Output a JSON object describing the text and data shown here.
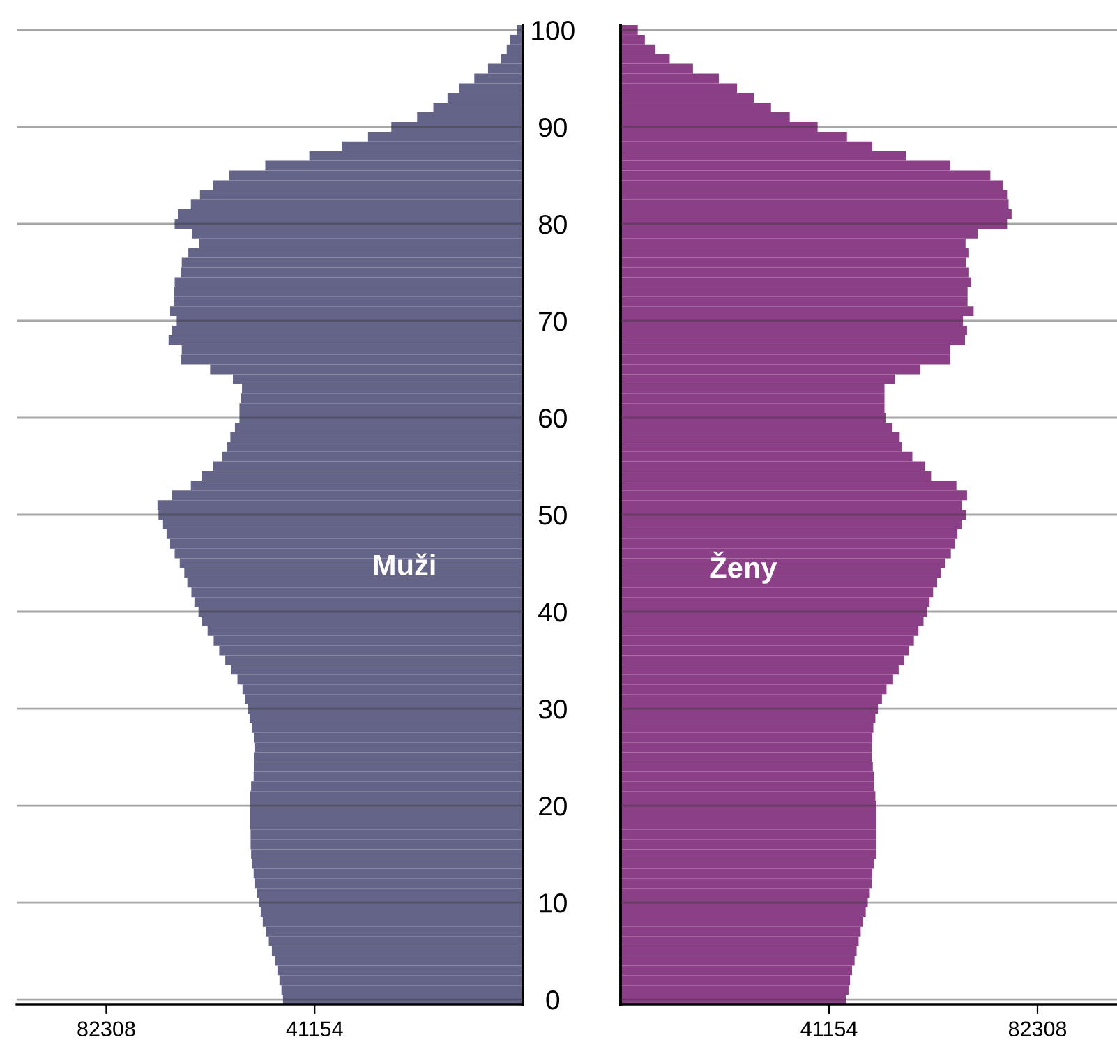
{
  "chart_data": [
    {
      "type": "bar",
      "orientation": "horizontal",
      "x": [
        0,
        1,
        2,
        3,
        4,
        5,
        6,
        7,
        8,
        9,
        10,
        11,
        12,
        13,
        14,
        15,
        16,
        17,
        18,
        19,
        20,
        21,
        22,
        23,
        24,
        25,
        26,
        27,
        28,
        29,
        30,
        31,
        32,
        33,
        34,
        35,
        36,
        37,
        38,
        39,
        40,
        41,
        42,
        43,
        44,
        45,
        46,
        47,
        48,
        49,
        50,
        51,
        52,
        53,
        54,
        55,
        56,
        57,
        58,
        59,
        60,
        61,
        62,
        63,
        64,
        65,
        66,
        67,
        68,
        69,
        70,
        71,
        72,
        73,
        74,
        75,
        76,
        77,
        78,
        79,
        80,
        81,
        82,
        83,
        84,
        85,
        86,
        87,
        88,
        89,
        90,
        91,
        92,
        93,
        94,
        95,
        96,
        97,
        98,
        99,
        100
      ],
      "series": [
        {
          "name": "Muži",
          "color": "#646488",
          "values": [
            47400,
            47700,
            48100,
            48500,
            49000,
            49600,
            50200,
            50800,
            51400,
            51800,
            52200,
            52600,
            52900,
            53200,
            53500,
            53700,
            53800,
            53800,
            53900,
            53900,
            53900,
            53900,
            53700,
            53200,
            53100,
            53100,
            52900,
            53100,
            53500,
            54000,
            54400,
            54900,
            55400,
            56400,
            57700,
            58800,
            60000,
            61100,
            62300,
            63400,
            64100,
            64900,
            65500,
            66300,
            66900,
            67800,
            68800,
            69700,
            70400,
            71100,
            72000,
            72200,
            69300,
            65600,
            63500,
            61200,
            59400,
            58400,
            57800,
            56900,
            56000,
            56000,
            55700,
            55500,
            57300,
            61800,
            67600,
            67400,
            70000,
            69300,
            68400,
            69700,
            69000,
            69000,
            68800,
            67600,
            67400,
            66100,
            64000,
            65400,
            68800,
            68100,
            65600,
            63800,
            61200,
            58000,
            50900,
            42200,
            35800,
            30600,
            26000,
            20900,
            17700,
            14900,
            12600,
            9600,
            6900,
            4300,
            3200,
            2500,
            1200
          ]
        }
      ],
      "xlim": [
        100000,
        0
      ],
      "xticks": [
        82308,
        41154
      ],
      "ylim": [
        -0.5,
        100.5
      ],
      "yticks": [
        0,
        10,
        20,
        30,
        40,
        50,
        60,
        70,
        80,
        90,
        100
      ],
      "grid": "y",
      "tick_labels": "x"
    },
    {
      "type": "bar",
      "orientation": "horizontal",
      "x": [
        0,
        1,
        2,
        3,
        4,
        5,
        6,
        7,
        8,
        9,
        10,
        11,
        12,
        13,
        14,
        15,
        16,
        17,
        18,
        19,
        20,
        21,
        22,
        23,
        24,
        25,
        26,
        27,
        28,
        29,
        30,
        31,
        32,
        33,
        34,
        35,
        36,
        37,
        38,
        39,
        40,
        41,
        42,
        43,
        44,
        45,
        46,
        47,
        48,
        49,
        50,
        51,
        52,
        53,
        54,
        55,
        56,
        57,
        58,
        59,
        60,
        61,
        62,
        63,
        64,
        65,
        66,
        67,
        68,
        69,
        70,
        71,
        72,
        73,
        74,
        75,
        76,
        77,
        78,
        79,
        80,
        81,
        82,
        83,
        84,
        85,
        86,
        87,
        88,
        89,
        90,
        91,
        92,
        93,
        94,
        95,
        96,
        97,
        98,
        99,
        100
      ],
      "series": [
        {
          "name": "Ženy",
          "color": "#8b3f87",
          "values": [
            44500,
            45000,
            45300,
            45700,
            46200,
            46600,
            47000,
            47400,
            47900,
            48400,
            48800,
            49200,
            49600,
            49700,
            50100,
            50500,
            50500,
            50500,
            50500,
            50500,
            50500,
            50300,
            50100,
            50000,
            49800,
            49600,
            49600,
            49700,
            49900,
            50300,
            50800,
            51600,
            52500,
            53800,
            54900,
            56000,
            56900,
            57900,
            58800,
            59800,
            60500,
            61000,
            61700,
            62500,
            63200,
            64100,
            65200,
            66000,
            66500,
            67300,
            68200,
            67400,
            68400,
            66300,
            61300,
            60100,
            57600,
            55500,
            55100,
            53700,
            52300,
            52100,
            52100,
            52100,
            54200,
            59200,
            65100,
            65100,
            68000,
            68400,
            67600,
            69700,
            68500,
            68500,
            69200,
            68800,
            68200,
            68800,
            68100,
            70500,
            76300,
            77200,
            76600,
            76300,
            75500,
            73000,
            65100,
            56400,
            49700,
            44700,
            38900,
            33400,
            29700,
            26300,
            23000,
            19400,
            14300,
            9700,
            6900,
            4800,
            3400
          ]
        }
      ],
      "xlim": [
        0,
        98000
      ],
      "xticks": [
        41154,
        82308
      ],
      "ylim": [
        -0.5,
        100.5
      ],
      "yticks": [
        0,
        10,
        20,
        30,
        40,
        50,
        60,
        70,
        80,
        90,
        100
      ],
      "grid": "y"
    }
  ]
}
